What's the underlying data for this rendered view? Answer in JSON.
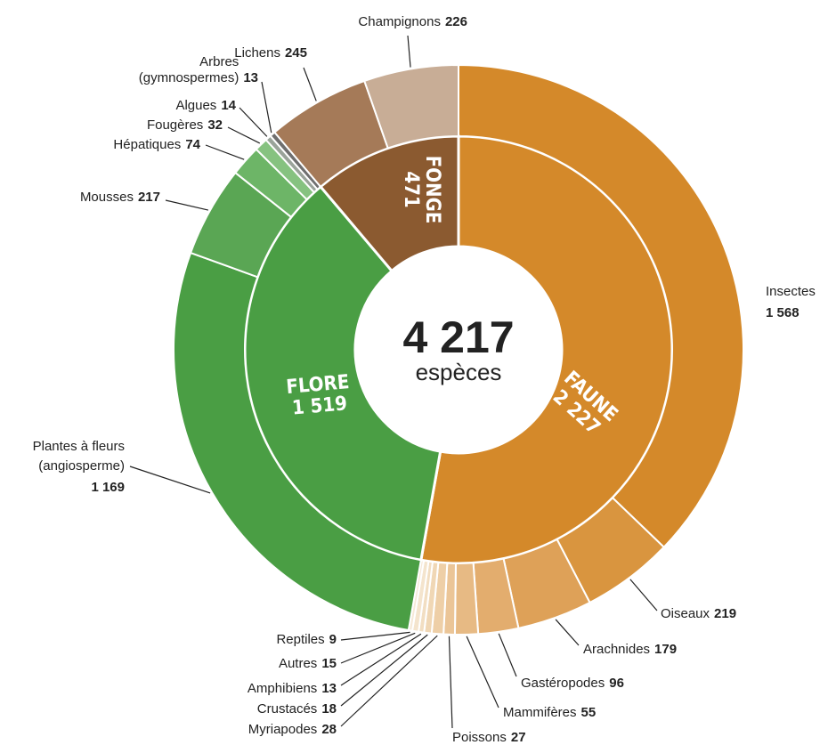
{
  "chart_data": {
    "type": "sunburst",
    "total": 4217,
    "total_label": "4 217",
    "total_unit": "espèces",
    "groups": [
      {
        "name": "FAUNE",
        "value": 2227,
        "value_label": "2 227",
        "color": "#d4892a",
        "children": [
          {
            "name": "Insectes",
            "value": 1568,
            "value_label": "1 568",
            "color": "#d4892a"
          },
          {
            "name": "Oiseaux",
            "value": 219,
            "color": "#d9953f"
          },
          {
            "name": "Arachnides",
            "value": 179,
            "color": "#dea158"
          },
          {
            "name": "Gastéropodes",
            "value": 96,
            "color": "#e3ad6e"
          },
          {
            "name": "Mammifères",
            "value": 55,
            "color": "#e7ba84"
          },
          {
            "name": "Poissons",
            "value": 27,
            "color": "#ebc597"
          },
          {
            "name": "Myriapodes",
            "value": 28,
            "color": "#eecfa7"
          },
          {
            "name": "Crustacés",
            "value": 18,
            "color": "#f0d7b5"
          },
          {
            "name": "Amphibiens",
            "value": 13,
            "color": "#f2dec2"
          },
          {
            "name": "Autres",
            "value": 15,
            "color": "#f4e4cd"
          },
          {
            "name": "Reptiles",
            "value": 9,
            "color": "#f6e9d8"
          }
        ]
      },
      {
        "name": "FLORE",
        "value": 1519,
        "value_label": "1 519",
        "color": "#4a9e44",
        "children": [
          {
            "name": "Plantes à fleurs (angiosperme)",
            "value": 1169,
            "value_label": "1 169",
            "color": "#4a9e44"
          },
          {
            "name": "Mousses",
            "value": 217,
            "color": "#5aa654"
          },
          {
            "name": "Hépatiques",
            "value": 74,
            "color": "#6db567"
          },
          {
            "name": "Fougères",
            "value": 32,
            "color": "#86c280"
          },
          {
            "name": "Algues",
            "value": 14,
            "color": "#9aa39a"
          },
          {
            "name": "Arbres (gymnospermes)",
            "value": 13,
            "color": "#6f6f6f"
          }
        ]
      },
      {
        "name": "FONGE",
        "value": 471,
        "color": "#8b5a30",
        "children": [
          {
            "name": "Lichens",
            "value": 245,
            "color": "#a57a58"
          },
          {
            "name": "Champignons",
            "value": 226,
            "color": "#c8ad96"
          }
        ]
      }
    ]
  }
}
